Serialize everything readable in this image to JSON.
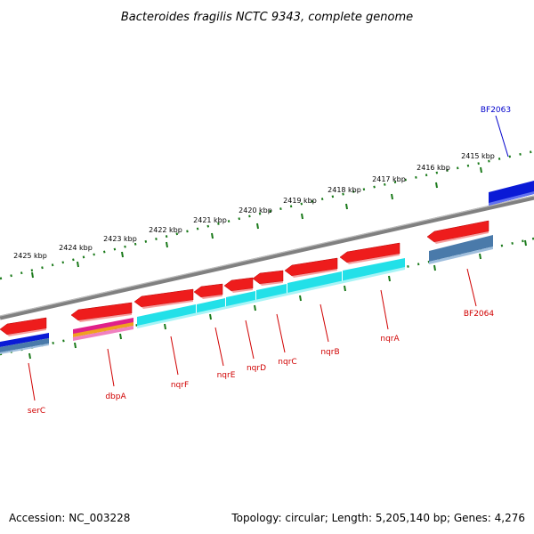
{
  "title": "Bacteroides fragilis NCTC 9343, complete genome",
  "footer": {
    "accession": "Accession: NC_003228",
    "summary": "Topology: circular; Length: 5,205,140 bp; Genes: 4,276"
  },
  "colors": {
    "backbone": "#808080",
    "tick": "#1a7a1a",
    "gene_red": "#ee1c1c",
    "cog_cyan": "#22e0e8",
    "cog_blue": "#0a1ad6",
    "cog_steel": "#4a7aaa",
    "cog_magenta": "#e0208a",
    "cog_orange": "#f0a020",
    "label_red": "#d00000",
    "label_blue": "#0000cc"
  },
  "kbp_labels": [
    "2425 kbp",
    "2424 kbp",
    "2423 kbp",
    "2422 kbp",
    "2421 kbp",
    "2420 kbp",
    "2419 kbp",
    "2418 kbp",
    "2417 kbp",
    "2416 kbp",
    "2415 kbp"
  ],
  "gene_labels": [
    "serC",
    "dbpA",
    "nqrF",
    "nqrE",
    "nqrD",
    "nqrC",
    "nqrB",
    "nqrA",
    "BF2064",
    "BF2063"
  ]
}
